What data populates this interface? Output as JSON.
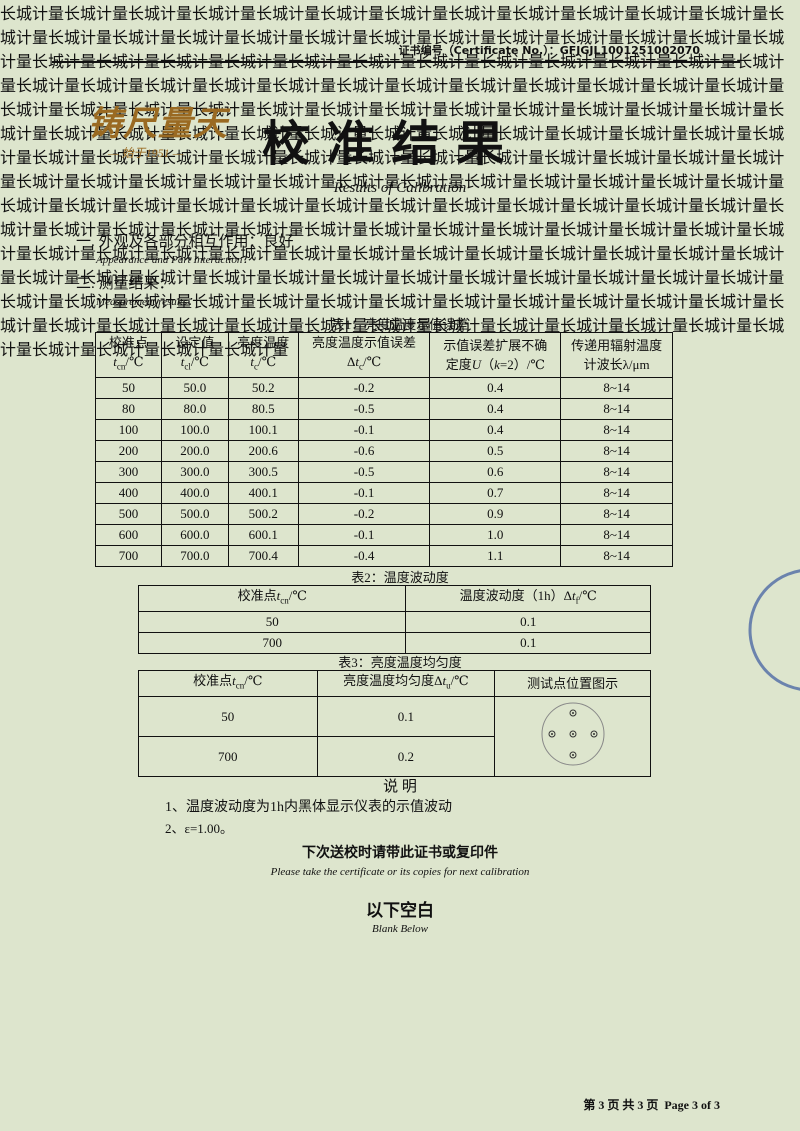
{
  "header": {
    "cert_label": "证书编号（Certificate No.）：",
    "cert_no": "GFJGJL1001251002070"
  },
  "logo": {
    "name": "铸尺量天",
    "since": "始于1951"
  },
  "title": "校 准 结 果",
  "subtitle": "Results of Calibration",
  "watermark": "长城计量",
  "section1": {
    "label": "一. 外观及各部分相互作用：良好",
    "en": "Appearance and Part Interaction："
  },
  "section2": {
    "label": "二. 测量结果：",
    "en": "Measurement results："
  },
  "table1": {
    "caption": "表1：亮度温度示值误差",
    "headers": [
      [
        [
          {
            "t": "校准点"
          }
        ],
        [
          {
            "t": "t",
            "i": true
          },
          {
            "t": "cn",
            "sub": true
          },
          {
            "t": "/℃"
          }
        ]
      ],
      [
        [
          {
            "t": "设定值"
          }
        ],
        [
          {
            "t": "t",
            "i": true
          },
          {
            "t": "cl",
            "sub": true
          },
          {
            "t": "/℃"
          }
        ]
      ],
      [
        [
          {
            "t": "亮度温度"
          }
        ],
        [
          {
            "t": "t",
            "i": true
          },
          {
            "t": "c",
            "sub": true
          },
          {
            "t": "/℃"
          }
        ]
      ],
      [
        [
          {
            "t": "亮度温度示值误差"
          }
        ],
        [
          {
            "t": "Δ"
          },
          {
            "t": "t",
            "i": true
          },
          {
            "t": "c",
            "sub": true
          },
          {
            "t": "/℃"
          }
        ]
      ],
      [
        [
          {
            "t": "示值误差扩展不确"
          }
        ],
        [
          {
            "t": "定度"
          },
          {
            "t": "U",
            "i": true
          },
          {
            "t": "（"
          },
          {
            "t": "k",
            "i": true
          },
          {
            "t": "=2）/℃"
          }
        ]
      ],
      [
        [
          {
            "t": "传递用辐射温度"
          }
        ],
        [
          {
            "t": "计波长λ/μm"
          }
        ]
      ]
    ],
    "rows": [
      [
        "50",
        "50.0",
        "50.2",
        "-0.2",
        "0.4",
        "8~14"
      ],
      [
        "80",
        "80.0",
        "80.5",
        "-0.5",
        "0.4",
        "8~14"
      ],
      [
        "100",
        "100.0",
        "100.1",
        "-0.1",
        "0.4",
        "8~14"
      ],
      [
        "200",
        "200.0",
        "200.6",
        "-0.6",
        "0.5",
        "8~14"
      ],
      [
        "300",
        "300.0",
        "300.5",
        "-0.5",
        "0.6",
        "8~14"
      ],
      [
        "400",
        "400.0",
        "400.1",
        "-0.1",
        "0.7",
        "8~14"
      ],
      [
        "500",
        "500.0",
        "500.2",
        "-0.2",
        "0.9",
        "8~14"
      ],
      [
        "600",
        "600.0",
        "600.1",
        "-0.1",
        "1.0",
        "8~14"
      ],
      [
        "700",
        "700.0",
        "700.4",
        "-0.4",
        "1.1",
        "8~14"
      ]
    ]
  },
  "table2": {
    "caption": "表2：温度波动度",
    "headers": [
      [
        [
          {
            "t": "校准点"
          },
          {
            "t": "t",
            "i": true
          },
          {
            "t": "cn",
            "sub": true
          },
          {
            "t": "/℃"
          }
        ]
      ],
      [
        [
          {
            "t": "温度波动度（1h）Δ"
          },
          {
            "t": "t",
            "i": true
          },
          {
            "t": "f",
            "sub": true
          },
          {
            "t": "/℃"
          }
        ]
      ]
    ],
    "rows": [
      [
        "50",
        "0.1"
      ],
      [
        "700",
        "0.1"
      ]
    ]
  },
  "table3": {
    "caption": "表3：亮度温度均匀度",
    "headers": [
      [
        [
          {
            "t": "校准点"
          },
          {
            "t": "t",
            "i": true
          },
          {
            "t": "cn",
            "sub": true
          },
          {
            "t": "/℃"
          }
        ]
      ],
      [
        [
          {
            "t": "亮度温度均匀度Δ"
          },
          {
            "t": "t",
            "i": true
          },
          {
            "t": "u",
            "sub": true
          },
          {
            "t": "/℃"
          }
        ]
      ],
      [
        [
          {
            "t": "测试点位置图示"
          }
        ]
      ]
    ],
    "rows": [
      [
        "50",
        "0.1"
      ],
      [
        "700",
        "0.2"
      ]
    ]
  },
  "notes": {
    "title": "说 明",
    "items": [
      "1、温度波动度为1h内黑体显示仪表的示值波动",
      "2、ε=1.00。"
    ]
  },
  "reminder": {
    "cn": "下次送校时请带此证书或复印件",
    "en": "Please take the certificate or its copies for next calibration"
  },
  "blank": {
    "cn": "以下空白",
    "en": "Blank Below"
  },
  "footer": "第 3 页 共 3 页  Page 3 of 3"
}
